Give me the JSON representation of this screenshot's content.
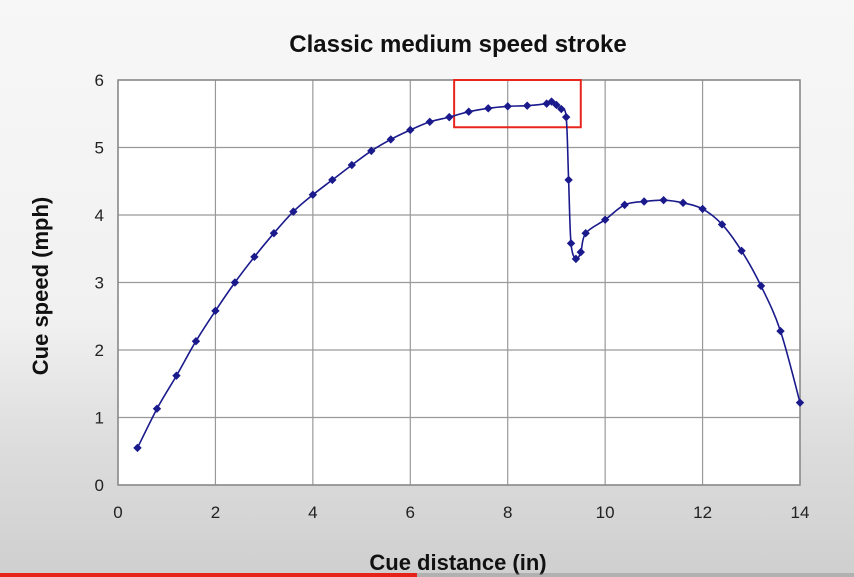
{
  "chart_data": {
    "type": "line",
    "title": "Classic medium speed stroke",
    "xlabel": "Cue distance (in)",
    "ylabel": "Cue speed (mph)",
    "xlim": [
      0,
      14
    ],
    "ylim": [
      0,
      6
    ],
    "xticks": [
      0,
      2,
      4,
      6,
      8,
      10,
      12,
      14
    ],
    "yticks": [
      0,
      1,
      2,
      3,
      4,
      5,
      6
    ],
    "grid": true,
    "colors": {
      "series": "#1a1a8c",
      "highlight": "#e8261e",
      "grid": "#999999"
    },
    "highlight_region": {
      "x": [
        6.9,
        9.5
      ],
      "y": [
        5.3,
        6.0
      ]
    },
    "series": [
      {
        "x": [
          0.4,
          0.8,
          1.2,
          1.6,
          2.0,
          2.4,
          2.8,
          3.2,
          3.6,
          4.0,
          4.4,
          4.8,
          5.2,
          5.6,
          6.0,
          6.4,
          6.8,
          7.2,
          7.6,
          8.0,
          8.4,
          8.8,
          8.9,
          9.0,
          9.1,
          9.2,
          9.25,
          9.3,
          9.4,
          9.5,
          9.6,
          10.0,
          10.4,
          10.8,
          11.2,
          11.6,
          12.0,
          12.4,
          12.8,
          13.2,
          13.6,
          14.0
        ],
        "y": [
          0.55,
          1.13,
          1.62,
          2.13,
          2.58,
          3.0,
          3.38,
          3.73,
          4.05,
          4.3,
          4.52,
          4.74,
          4.95,
          5.12,
          5.26,
          5.38,
          5.45,
          5.53,
          5.58,
          5.61,
          5.62,
          5.65,
          5.68,
          5.63,
          5.57,
          5.45,
          4.52,
          3.58,
          3.35,
          3.45,
          3.73,
          3.93,
          4.15,
          4.2,
          4.22,
          4.18,
          4.09,
          3.86,
          3.47,
          2.95,
          2.28,
          1.22
        ]
      }
    ]
  },
  "video": {
    "progress": 0.488
  }
}
